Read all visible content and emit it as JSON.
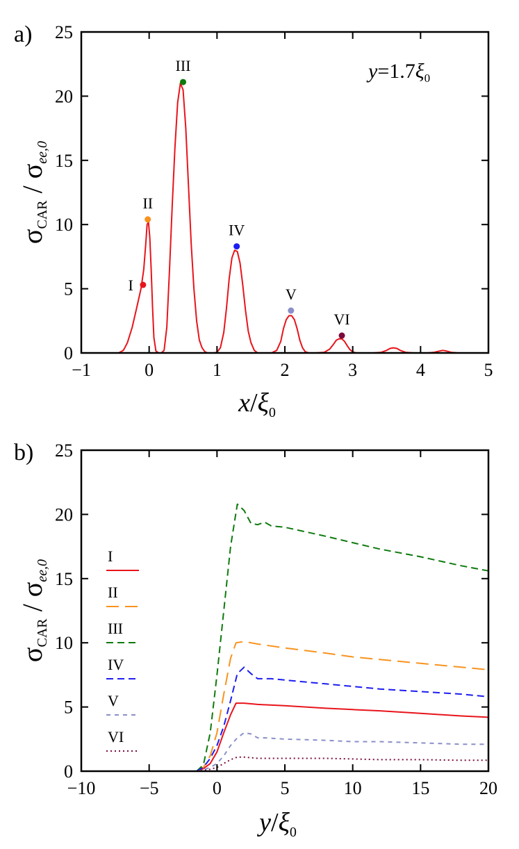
{
  "chart_data": [
    {
      "type": "line",
      "panel": "a)",
      "annotation": {
        "var": "y",
        "eq": "=1.7",
        "sym": "ξ",
        "sub": "0"
      },
      "xlabel": {
        "var": "x",
        "slash": "/",
        "sym": "ξ",
        "sub": "0"
      },
      "ylabel": {
        "main1": "σ",
        "sub1": "CAR",
        "slash": " / ",
        "main2": "σ",
        "sub2": "ee,0"
      },
      "xlim": [
        -1,
        5
      ],
      "ylim": [
        0,
        25
      ],
      "xticks": [
        -1,
        0,
        1,
        2,
        3,
        4,
        5
      ],
      "xtick_labels": [
        "−1",
        "0",
        "1",
        "2",
        "3",
        "4",
        "5"
      ],
      "yticks": [
        0,
        5,
        10,
        15,
        20,
        25
      ],
      "ytick_labels": [
        "0",
        "5",
        "10",
        "15",
        "20",
        "25"
      ],
      "series": [
        {
          "color": "#e8141b",
          "x": [
            -0.65,
            -0.45,
            -0.38,
            -0.32,
            -0.25,
            -0.18,
            -0.12,
            -0.08,
            -0.05,
            -0.03,
            -0.01,
            0.01,
            0.03,
            0.05,
            0.07,
            0.1,
            0.14,
            0.18,
            0.22,
            0.26,
            0.3,
            0.34,
            0.38,
            0.42,
            0.46,
            0.5,
            0.54,
            0.58,
            0.62,
            0.66,
            0.7,
            0.74,
            0.78,
            0.82,
            0.86,
            0.9,
            0.95,
            1.0,
            1.05,
            1.1,
            1.14,
            1.18,
            1.22,
            1.26,
            1.3,
            1.34,
            1.38,
            1.42,
            1.46,
            1.5,
            1.55,
            1.6,
            1.7,
            1.8,
            1.88,
            1.94,
            1.98,
            2.02,
            2.06,
            2.1,
            2.14,
            2.18,
            2.22,
            2.26,
            2.3,
            2.35,
            2.45,
            2.58,
            2.66,
            2.72,
            2.76,
            2.8,
            2.84,
            2.88,
            2.92,
            2.96,
            3.0,
            3.05,
            3.15,
            3.3,
            3.42,
            3.5,
            3.55,
            3.6,
            3.65,
            3.7,
            3.78,
            3.9,
            4.1,
            4.2,
            4.28,
            4.33,
            4.38,
            4.45,
            4.55
          ],
          "y": [
            0,
            0,
            0.2,
            0.8,
            2.0,
            3.6,
            5.0,
            6.5,
            8.5,
            10.0,
            10.2,
            9.0,
            6.5,
            3.5,
            1.2,
            0.15,
            0,
            0,
            0.2,
            2.0,
            6.5,
            11.5,
            16.0,
            19.5,
            21.0,
            20.5,
            17.5,
            13.0,
            8.5,
            5.0,
            2.5,
            1.0,
            0.4,
            0.1,
            0,
            0,
            0,
            0.05,
            0.4,
            1.6,
            3.5,
            5.8,
            7.4,
            8.0,
            7.9,
            7.0,
            5.3,
            3.3,
            1.7,
            0.8,
            0.2,
            0,
            0,
            0,
            0.2,
            0.9,
            1.9,
            2.6,
            2.9,
            2.9,
            2.6,
            1.9,
            1.0,
            0.4,
            0.1,
            0,
            0,
            0.05,
            0.3,
            0.7,
            1.0,
            1.1,
            1.1,
            0.9,
            0.55,
            0.25,
            0.08,
            0,
            0,
            0,
            0.05,
            0.2,
            0.35,
            0.4,
            0.35,
            0.2,
            0.05,
            0,
            0,
            0.05,
            0.15,
            0.2,
            0.15,
            0.05,
            0
          ]
        }
      ],
      "markers": [
        {
          "label": "I",
          "x": -0.09,
          "y": 5.3,
          "color": "#e8141b"
        },
        {
          "label": "II",
          "x": -0.02,
          "y": 10.4,
          "color": "#f7931e"
        },
        {
          "label": "III",
          "x": 0.5,
          "y": 21.1,
          "color": "#0e7a0d"
        },
        {
          "label": "IV",
          "x": 1.29,
          "y": 8.3,
          "color": "#1d1df0"
        },
        {
          "label": "V",
          "x": 2.09,
          "y": 3.3,
          "color": "#8a8fc8"
        },
        {
          "label": "VI",
          "x": 2.84,
          "y": 1.35,
          "color": "#7a0b3a"
        }
      ]
    },
    {
      "type": "line",
      "panel": "b)",
      "xlabel": {
        "var": "y",
        "slash": "/",
        "sym": "ξ",
        "sub": "0"
      },
      "ylabel": {
        "main1": "σ",
        "sub1": "CAR",
        "slash": " / ",
        "main2": "σ",
        "sub2": "ee,0"
      },
      "xlim": [
        -10,
        20
      ],
      "ylim": [
        0,
        25
      ],
      "xticks": [
        -10,
        -5,
        0,
        5,
        10,
        15,
        20
      ],
      "xtick_labels": [
        "−10",
        "−5",
        "0",
        "5",
        "10",
        "15",
        "20"
      ],
      "yticks": [
        0,
        5,
        10,
        15,
        20,
        25
      ],
      "ytick_labels": [
        "0",
        "5",
        "10",
        "15",
        "20",
        "25"
      ],
      "legend_placement": "left",
      "series": [
        {
          "name": "I",
          "color": "#e8141b",
          "dash": "",
          "x": [
            -1.5,
            -1.0,
            -0.5,
            0,
            0.5,
            1.0,
            1.4,
            2.0,
            3.0,
            5,
            8,
            10,
            12,
            15,
            18,
            20
          ],
          "y": [
            0,
            0.2,
            0.6,
            1.5,
            3.0,
            4.4,
            5.3,
            5.3,
            5.2,
            5.1,
            4.9,
            4.8,
            4.7,
            4.5,
            4.3,
            4.2
          ]
        },
        {
          "name": "II",
          "color": "#f7931e",
          "dash": "18,9",
          "x": [
            -1.5,
            -1.0,
            -0.5,
            0,
            0.5,
            1.0,
            1.4,
            2.0,
            3.0,
            5,
            8,
            10,
            12,
            15,
            18,
            20
          ],
          "y": [
            0,
            0.3,
            1.2,
            3.0,
            6.0,
            8.8,
            10.0,
            10.1,
            9.9,
            9.6,
            9.2,
            8.9,
            8.7,
            8.4,
            8.1,
            7.9
          ]
        },
        {
          "name": "III",
          "color": "#0e7a0d",
          "dash": "10,6",
          "x": [
            -1.5,
            -1.0,
            -0.5,
            0,
            0.5,
            1.0,
            1.5,
            2.0,
            2.5,
            3.0,
            3.5,
            4.0,
            5,
            8,
            10,
            12,
            15,
            18,
            20
          ],
          "y": [
            0,
            0.5,
            3.0,
            7.5,
            12.5,
            17.5,
            20.8,
            20.3,
            19.3,
            19.2,
            19.4,
            19.1,
            19.0,
            18.3,
            17.8,
            17.3,
            16.7,
            16.0,
            15.6
          ]
        },
        {
          "name": "IV",
          "color": "#1d1df0",
          "dash": "10,6",
          "x": [
            -1.5,
            -1.0,
            -0.5,
            0,
            0.5,
            1.0,
            1.5,
            2.0,
            2.5,
            3.0,
            4.0,
            5,
            8,
            10,
            12,
            15,
            18,
            20
          ],
          "y": [
            0,
            0.3,
            1.0,
            2.0,
            3.5,
            5.5,
            7.6,
            8.1,
            7.6,
            7.2,
            7.2,
            7.1,
            6.8,
            6.6,
            6.4,
            6.2,
            6.0,
            5.8
          ]
        },
        {
          "name": "V",
          "color": "#8a8fc8",
          "dash": "6,6",
          "x": [
            -1.5,
            -1.0,
            -0.5,
            0,
            0.5,
            1.0,
            1.5,
            2.0,
            2.5,
            3.0,
            3.5,
            5,
            8,
            10,
            12,
            15,
            18,
            20
          ],
          "y": [
            0,
            0.1,
            0.3,
            0.6,
            1.2,
            2.0,
            2.6,
            3.0,
            2.9,
            2.6,
            2.6,
            2.5,
            2.4,
            2.3,
            2.3,
            2.2,
            2.1,
            2.1
          ]
        },
        {
          "name": "VI",
          "color": "#7a0b3a",
          "dash": "2,4",
          "x": [
            -1.5,
            -1.0,
            -0.5,
            0,
            0.5,
            1.0,
            1.5,
            2.0,
            3.0,
            5,
            8,
            10,
            12,
            15,
            18,
            20
          ],
          "y": [
            0,
            0.05,
            0.15,
            0.3,
            0.6,
            0.9,
            1.1,
            1.1,
            1.0,
            1.0,
            1.0,
            0.95,
            0.9,
            0.9,
            0.85,
            0.85
          ]
        }
      ]
    }
  ]
}
